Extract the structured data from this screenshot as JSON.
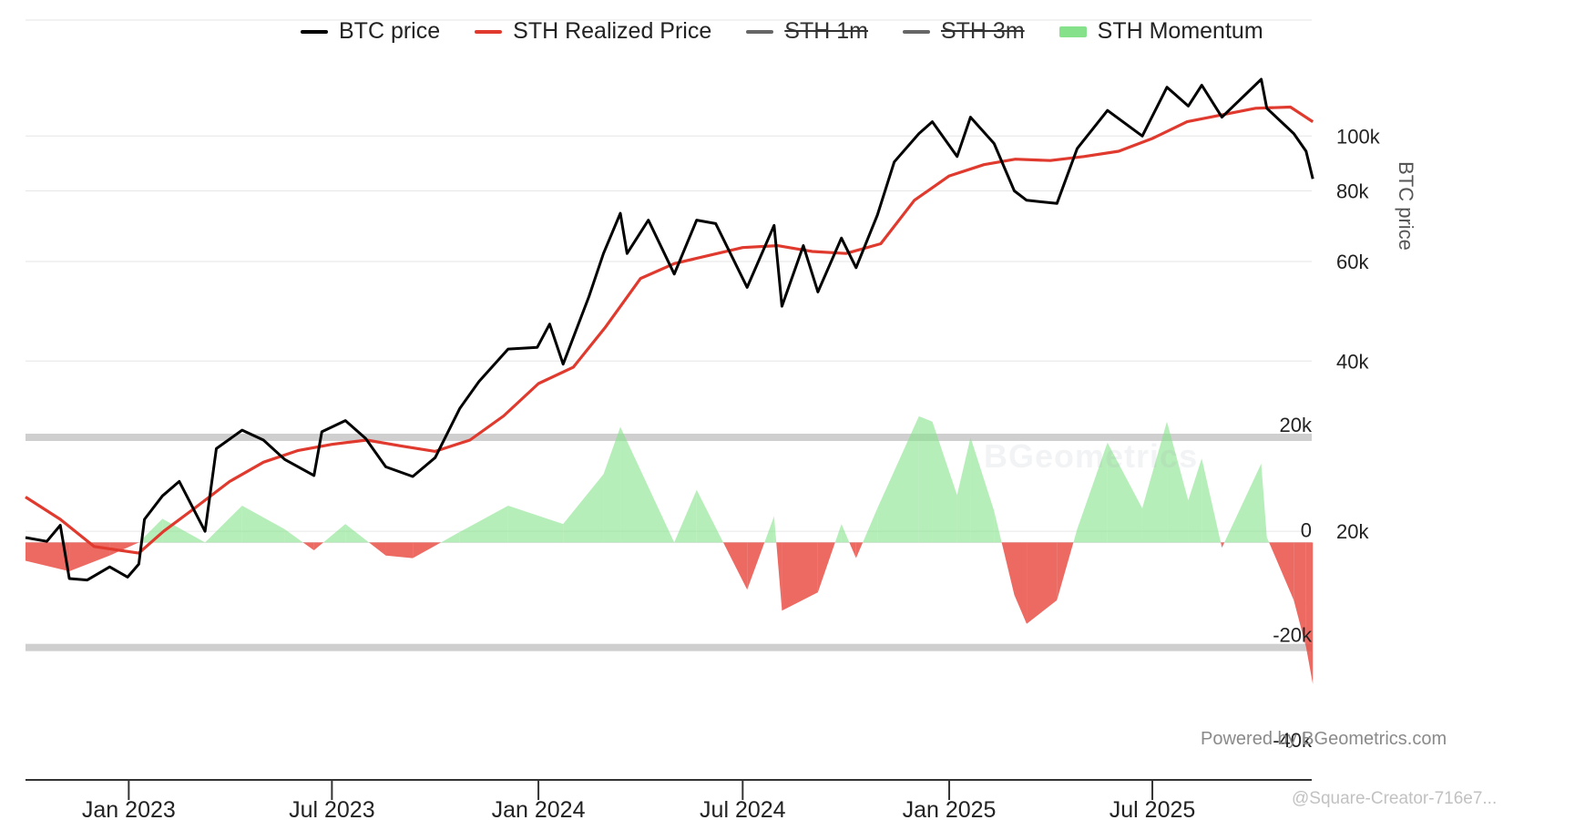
{
  "legend": [
    {
      "label": "BTC price",
      "color": "#000000",
      "kind": "line",
      "hidden": false
    },
    {
      "label": "STH Realized Price",
      "color": "#e03a2e",
      "kind": "line",
      "hidden": false
    },
    {
      "label": "STH 1m",
      "color": "#666666",
      "kind": "line",
      "hidden": true
    },
    {
      "label": "STH 3m",
      "color": "#666666",
      "kind": "line",
      "hidden": true
    },
    {
      "label": "STH Momentum",
      "color": "#86e28a",
      "kind": "area",
      "hidden": false
    }
  ],
  "credits": "Powered by BGeometrics.com",
  "watermark": "@Square-Creator-716e7...",
  "background_logo": "BGeometrics",
  "chart_data": {
    "type": "line",
    "x_tick_labels": [
      "Jan 2023",
      "Jul 2023",
      "Jan 2024",
      "Jul 2024",
      "Jan 2025",
      "Jul 2025"
    ],
    "x_range": [
      "2022-10-01",
      "2025-11-20"
    ],
    "price_axis": {
      "label": "BTC price",
      "scale": "log",
      "ticks": [
        "20k",
        "40k",
        "60k",
        "80k",
        "100k"
      ],
      "range": [
        10000,
        150000
      ]
    },
    "momentum_axis": {
      "ticks": [
        "20k",
        "0",
        "-20k",
        "-40k"
      ],
      "range": [
        -40000,
        20000
      ]
    },
    "series": [
      {
        "name": "BTC price",
        "color": "#000000",
        "points": [
          [
            "2022-10-01",
            19500
          ],
          [
            "2022-10-20",
            19200
          ],
          [
            "2022-11-01",
            20500
          ],
          [
            "2022-11-09",
            16500
          ],
          [
            "2022-11-25",
            16400
          ],
          [
            "2022-12-15",
            17300
          ],
          [
            "2022-12-31",
            16600
          ],
          [
            "2023-01-10",
            17500
          ],
          [
            "2023-01-15",
            21000
          ],
          [
            "2023-01-31",
            23100
          ],
          [
            "2023-02-15",
            24500
          ],
          [
            "2023-03-10",
            20000
          ],
          [
            "2023-03-20",
            28000
          ],
          [
            "2023-04-12",
            30200
          ],
          [
            "2023-05-01",
            29000
          ],
          [
            "2023-05-20",
            26800
          ],
          [
            "2023-06-15",
            25100
          ],
          [
            "2023-06-22",
            30000
          ],
          [
            "2023-07-13",
            31400
          ],
          [
            "2023-07-31",
            29200
          ],
          [
            "2023-08-18",
            26000
          ],
          [
            "2023-09-11",
            25000
          ],
          [
            "2023-10-01",
            27000
          ],
          [
            "2023-10-23",
            33000
          ],
          [
            "2023-11-09",
            36800
          ],
          [
            "2023-12-05",
            42000
          ],
          [
            "2023-12-31",
            42300
          ],
          [
            "2024-01-11",
            46500
          ],
          [
            "2024-01-23",
            39500
          ],
          [
            "2024-02-15",
            52000
          ],
          [
            "2024-02-28",
            62000
          ],
          [
            "2024-03-14",
            73000
          ],
          [
            "2024-03-20",
            62000
          ],
          [
            "2024-04-08",
            71000
          ],
          [
            "2024-05-01",
            57000
          ],
          [
            "2024-05-21",
            71000
          ],
          [
            "2024-06-07",
            70000
          ],
          [
            "2024-07-05",
            54000
          ],
          [
            "2024-07-29",
            69500
          ],
          [
            "2024-08-05",
            50000
          ],
          [
            "2024-08-24",
            64000
          ],
          [
            "2024-09-06",
            53000
          ],
          [
            "2024-09-27",
            66000
          ],
          [
            "2024-10-10",
            58500
          ],
          [
            "2024-10-29",
            72500
          ],
          [
            "2024-11-13",
            90000
          ],
          [
            "2024-12-05",
            101000
          ],
          [
            "2024-12-17",
            106000
          ],
          [
            "2025-01-08",
            92000
          ],
          [
            "2025-01-20",
            108000
          ],
          [
            "2025-02-10",
            97000
          ],
          [
            "2025-02-28",
            80000
          ],
          [
            "2025-03-11",
            77000
          ],
          [
            "2025-04-07",
            76000
          ],
          [
            "2025-04-25",
            95000
          ],
          [
            "2025-05-22",
            111000
          ],
          [
            "2025-06-22",
            100000
          ],
          [
            "2025-07-14",
            122000
          ],
          [
            "2025-08-02",
            113000
          ],
          [
            "2025-08-14",
            123000
          ],
          [
            "2025-09-01",
            108000
          ],
          [
            "2025-10-06",
            126000
          ],
          [
            "2025-10-11",
            112000
          ],
          [
            "2025-11-04",
            101000
          ],
          [
            "2025-11-15",
            94000
          ],
          [
            "2025-11-21",
            84000
          ]
        ]
      },
      {
        "name": "STH Realized Price",
        "color": "#e03a2e",
        "points": [
          [
            "2022-10-01",
            23000
          ],
          [
            "2022-11-01",
            21000
          ],
          [
            "2022-12-01",
            18800
          ],
          [
            "2023-01-10",
            18300
          ],
          [
            "2023-02-01",
            20000
          ],
          [
            "2023-03-01",
            22000
          ],
          [
            "2023-04-01",
            24500
          ],
          [
            "2023-05-01",
            26500
          ],
          [
            "2023-06-01",
            27800
          ],
          [
            "2023-07-01",
            28500
          ],
          [
            "2023-08-01",
            29000
          ],
          [
            "2023-09-01",
            28300
          ],
          [
            "2023-10-01",
            27700
          ],
          [
            "2023-11-01",
            29000
          ],
          [
            "2023-12-01",
            32000
          ],
          [
            "2024-01-01",
            36500
          ],
          [
            "2024-02-01",
            39000
          ],
          [
            "2024-03-01",
            46000
          ],
          [
            "2024-04-01",
            56000
          ],
          [
            "2024-05-01",
            59500
          ],
          [
            "2024-06-01",
            61500
          ],
          [
            "2024-07-01",
            63500
          ],
          [
            "2024-08-01",
            64000
          ],
          [
            "2024-09-01",
            62500
          ],
          [
            "2024-10-01",
            62000
          ],
          [
            "2024-11-01",
            64500
          ],
          [
            "2024-12-01",
            77000
          ],
          [
            "2025-01-01",
            85000
          ],
          [
            "2025-02-01",
            89000
          ],
          [
            "2025-03-01",
            91000
          ],
          [
            "2025-04-01",
            90500
          ],
          [
            "2025-05-01",
            92000
          ],
          [
            "2025-06-01",
            94000
          ],
          [
            "2025-07-01",
            99000
          ],
          [
            "2025-08-01",
            106000
          ],
          [
            "2025-09-01",
            109000
          ],
          [
            "2025-10-01",
            112000
          ],
          [
            "2025-11-01",
            112500
          ],
          [
            "2025-11-21",
            106000
          ]
        ]
      },
      {
        "name": "STH Momentum",
        "color": "#86e28a",
        "negative_color": "#e8453c",
        "points": [
          [
            "2022-10-01",
            -3500
          ],
          [
            "2022-11-09",
            -5500
          ],
          [
            "2022-12-15",
            -2500
          ],
          [
            "2023-01-10",
            0
          ],
          [
            "2023-01-31",
            4500
          ],
          [
            "2023-03-10",
            0
          ],
          [
            "2023-04-12",
            7000
          ],
          [
            "2023-05-20",
            2500
          ],
          [
            "2023-06-15",
            -1500
          ],
          [
            "2023-07-13",
            3500
          ],
          [
            "2023-08-18",
            -2500
          ],
          [
            "2023-09-11",
            -3000
          ],
          [
            "2023-10-23",
            2000
          ],
          [
            "2023-12-05",
            7000
          ],
          [
            "2024-01-23",
            3500
          ],
          [
            "2024-02-28",
            13000
          ],
          [
            "2024-03-14",
            22000
          ],
          [
            "2024-05-01",
            0
          ],
          [
            "2024-05-21",
            10000
          ],
          [
            "2024-07-05",
            -9000
          ],
          [
            "2024-07-29",
            5000
          ],
          [
            "2024-08-05",
            -13000
          ],
          [
            "2024-09-06",
            -9500
          ],
          [
            "2024-09-27",
            3500
          ],
          [
            "2024-10-10",
            -3000
          ],
          [
            "2024-10-29",
            6500
          ],
          [
            "2024-12-05",
            24000
          ],
          [
            "2024-12-17",
            23000
          ],
          [
            "2025-01-08",
            9000
          ],
          [
            "2025-01-20",
            20000
          ],
          [
            "2025-02-10",
            6000
          ],
          [
            "2025-02-28",
            -10000
          ],
          [
            "2025-03-11",
            -15500
          ],
          [
            "2025-04-07",
            -11000
          ],
          [
            "2025-04-25",
            2500
          ],
          [
            "2025-05-22",
            19000
          ],
          [
            "2025-06-22",
            6500
          ],
          [
            "2025-07-14",
            23000
          ],
          [
            "2025-08-02",
            8000
          ],
          [
            "2025-08-14",
            16000
          ],
          [
            "2025-09-01",
            -1000
          ],
          [
            "2025-10-06",
            15000
          ],
          [
            "2025-10-11",
            1000
          ],
          [
            "2025-11-04",
            -11000
          ],
          [
            "2025-11-15",
            -20000
          ],
          [
            "2025-11-21",
            -27000
          ]
        ]
      }
    ]
  }
}
